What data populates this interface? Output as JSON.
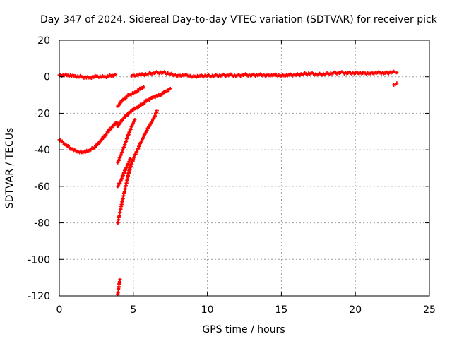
{
  "chart_data": {
    "type": "scatter",
    "title": "Day 347 of 2024, Sidereal Day-to-day VTEC variation (SDTVAR) for receiver pick",
    "xlabel": "GPS time / hours",
    "ylabel": "SDTVAR / TECUs",
    "xlim": [
      0,
      25
    ],
    "ylim": [
      -120,
      20
    ],
    "xticks": [
      0,
      5,
      10,
      15,
      20,
      25
    ],
    "yticks": [
      20,
      0,
      -20,
      -40,
      -60,
      -80,
      -100,
      -120
    ],
    "xtick_labels": [
      "0",
      "5",
      "10",
      "15",
      "20",
      "25"
    ],
    "ytick_labels": [
      "20",
      "0",
      "-20",
      "-40",
      "-60",
      "-80",
      "-100",
      "-120"
    ],
    "grid": true,
    "marker": "cross",
    "color": "#ff0000",
    "series": [
      {
        "points": [
          [
            0.0,
            1.0
          ],
          [
            0.5,
            0.8
          ],
          [
            1.0,
            0.5
          ],
          [
            1.5,
            0.0
          ],
          [
            2.0,
            -0.5
          ],
          [
            2.5,
            0.3
          ],
          [
            3.0,
            0.0
          ],
          [
            3.5,
            0.5
          ],
          [
            3.8,
            1.2
          ]
        ]
      },
      {
        "points": [
          [
            4.9,
            0.5
          ],
          [
            5.5,
            1.0
          ],
          [
            6.0,
            1.5
          ],
          [
            6.5,
            2.3
          ],
          [
            7.0,
            2.3
          ],
          [
            7.5,
            1.5
          ],
          [
            8.0,
            0.5
          ],
          [
            8.5,
            1.0
          ],
          [
            9.0,
            0.0
          ],
          [
            9.5,
            0.5
          ],
          [
            10.0,
            0.5
          ],
          [
            10.5,
            0.5
          ],
          [
            11.0,
            0.8
          ],
          [
            11.5,
            1.0
          ],
          [
            12.0,
            0.5
          ],
          [
            12.5,
            1.2
          ],
          [
            13.0,
            0.8
          ],
          [
            13.5,
            1.0
          ],
          [
            14.0,
            0.7
          ],
          [
            14.5,
            1.0
          ],
          [
            15.0,
            0.5
          ],
          [
            15.5,
            1.0
          ],
          [
            16.0,
            1.0
          ],
          [
            16.5,
            1.5
          ],
          [
            17.0,
            1.8
          ],
          [
            17.5,
            1.3
          ],
          [
            18.0,
            1.5
          ],
          [
            18.5,
            2.0
          ],
          [
            19.0,
            2.3
          ],
          [
            19.5,
            2.0
          ],
          [
            20.0,
            2.0
          ],
          [
            20.5,
            2.0
          ],
          [
            21.0,
            1.8
          ],
          [
            21.5,
            2.3
          ],
          [
            22.0,
            2.0
          ],
          [
            22.5,
            2.5
          ],
          [
            22.8,
            2.3
          ]
        ]
      },
      {
        "points": [
          [
            22.6,
            -4.5
          ],
          [
            22.7,
            -4.2
          ],
          [
            22.8,
            -3.5
          ]
        ]
      },
      {
        "points": [
          [
            0.0,
            -34.5
          ],
          [
            0.4,
            -37.0
          ],
          [
            0.8,
            -39.5
          ],
          [
            1.2,
            -41.0
          ],
          [
            1.6,
            -41.5
          ],
          [
            2.0,
            -40.5
          ],
          [
            2.4,
            -38.5
          ],
          [
            2.8,
            -35.0
          ],
          [
            3.2,
            -31.0
          ],
          [
            3.6,
            -27.0
          ],
          [
            3.9,
            -25.0
          ]
        ]
      },
      {
        "points": [
          [
            3.95,
            -27.0
          ],
          [
            4.3,
            -23.0
          ],
          [
            4.8,
            -19.0
          ],
          [
            5.2,
            -17.0
          ],
          [
            5.6,
            -15.0
          ],
          [
            6.0,
            -12.5
          ],
          [
            6.4,
            -11.0
          ],
          [
            6.8,
            -10.0
          ],
          [
            7.2,
            -8.0
          ],
          [
            7.5,
            -6.5
          ]
        ]
      },
      {
        "points": [
          [
            3.95,
            -16.0
          ],
          [
            4.3,
            -12.5
          ],
          [
            4.7,
            -10.0
          ],
          [
            5.1,
            -8.5
          ],
          [
            5.5,
            -6.5
          ],
          [
            5.7,
            -5.5
          ]
        ]
      },
      {
        "points": [
          [
            3.95,
            -47.0
          ],
          [
            4.3,
            -40.0
          ],
          [
            4.6,
            -33.0
          ],
          [
            4.9,
            -27.0
          ],
          [
            5.1,
            -23.5
          ]
        ]
      },
      {
        "points": [
          [
            3.95,
            -60.0
          ],
          [
            4.2,
            -56.0
          ],
          [
            4.5,
            -50.0
          ],
          [
            4.8,
            -45.0
          ]
        ]
      },
      {
        "points": [
          [
            4.6,
            -55.0
          ],
          [
            5.0,
            -45.0
          ],
          [
            5.5,
            -36.0
          ],
          [
            6.0,
            -28.0
          ],
          [
            6.4,
            -22.5
          ],
          [
            6.6,
            -18.5
          ]
        ]
      },
      {
        "points": [
          [
            3.95,
            -80.0
          ],
          [
            4.05,
            -76.0
          ],
          [
            4.2,
            -70.0
          ],
          [
            4.4,
            -63.0
          ],
          [
            4.6,
            -56.0
          ],
          [
            4.8,
            -48.0
          ]
        ]
      },
      {
        "points": [
          [
            3.95,
            -119.0
          ],
          [
            4.0,
            -116.0
          ],
          [
            4.05,
            -113.0
          ],
          [
            4.1,
            -111.0
          ]
        ]
      }
    ]
  }
}
